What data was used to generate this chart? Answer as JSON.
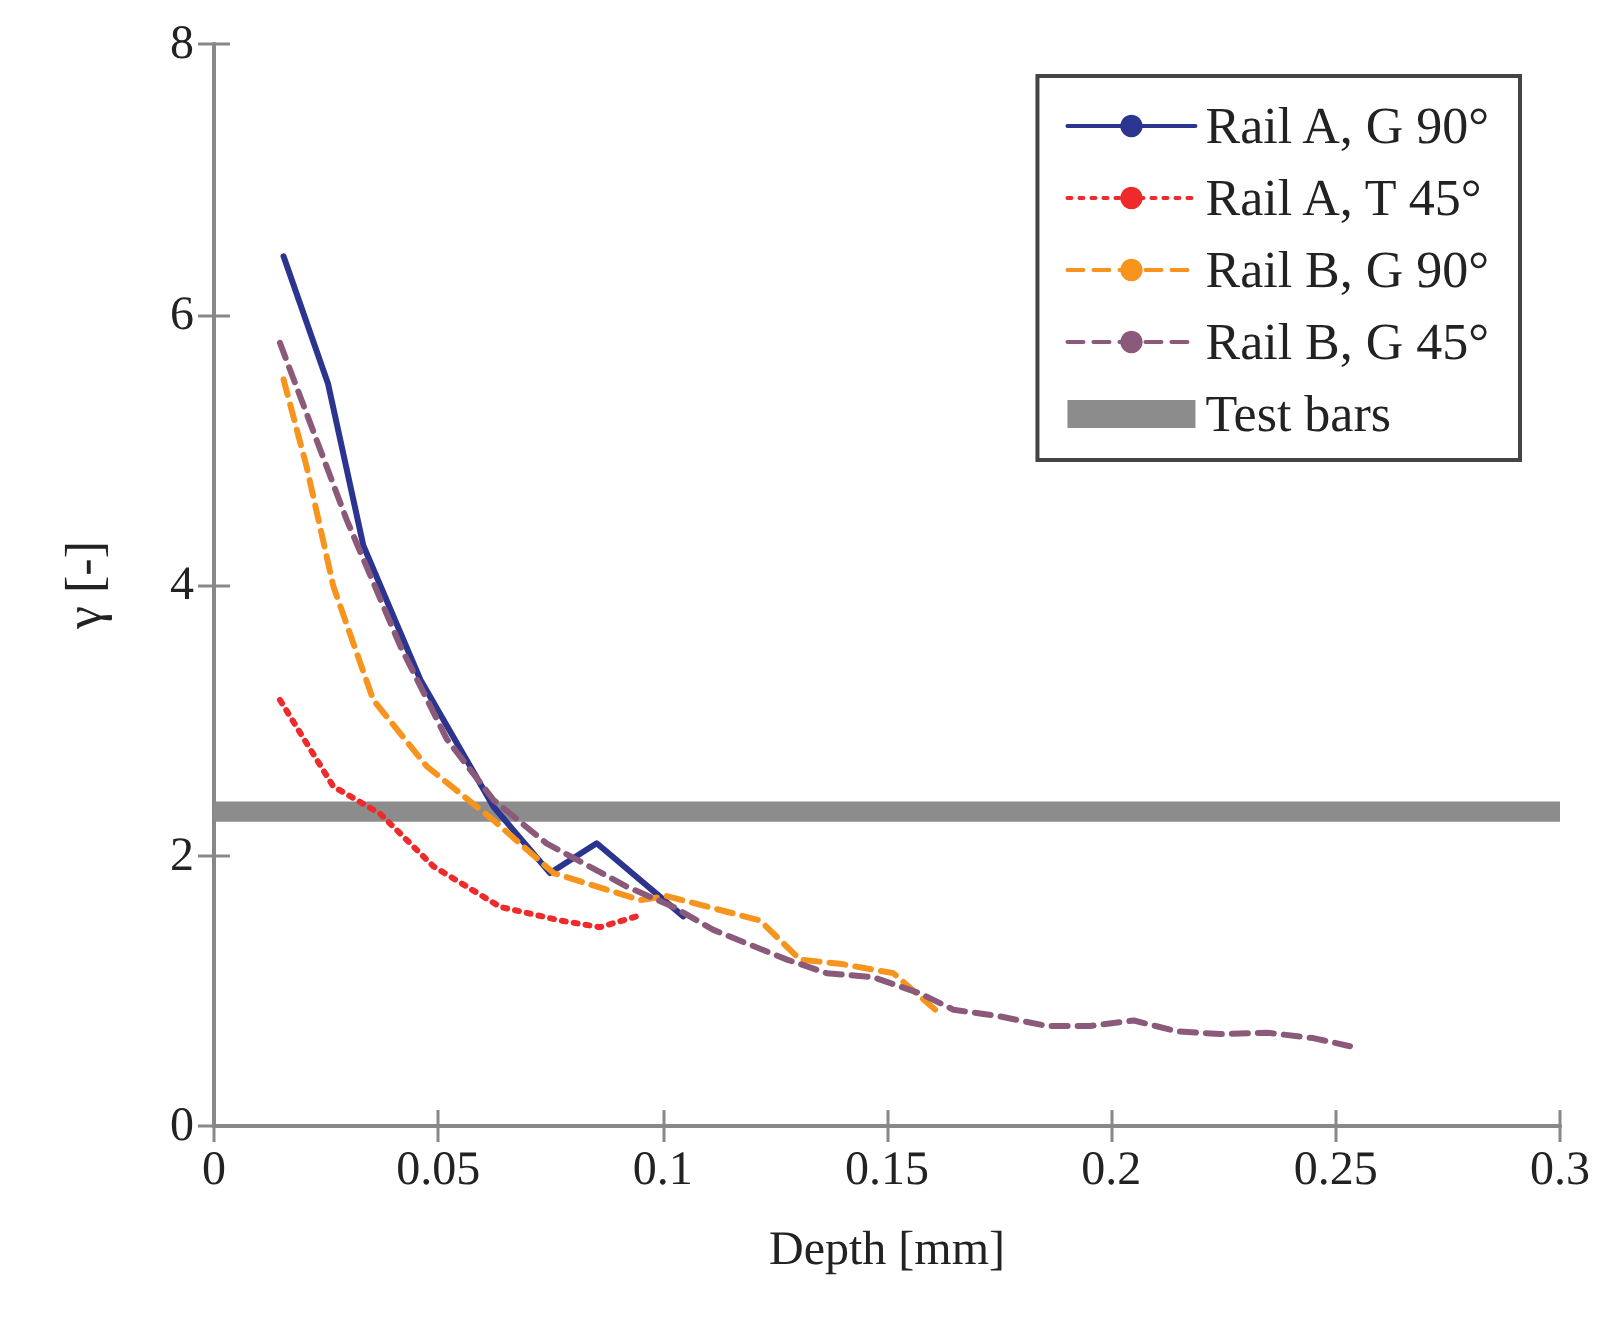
{
  "chart_data": {
    "type": "line",
    "xlabel": "Depth [mm]",
    "ylabel": "γ [-]",
    "xlim": [
      0,
      0.3
    ],
    "xticks": [
      0,
      0.05,
      0.1,
      0.15,
      0.2,
      0.25,
      0.3
    ],
    "ylim": [
      0,
      8
    ],
    "yticks": [
      0,
      2,
      4,
      6,
      8
    ],
    "grid": false,
    "legend": "top right",
    "marker": "none",
    "series": [
      {
        "name": "Rail A, G 90°",
        "color": "#2b3590",
        "line_style": "solid",
        "x": [
          0.0155,
          0.0254,
          0.0333,
          0.046,
          0.0623,
          0.0749,
          0.0853,
          0.1046
        ],
        "values": [
          6.43,
          5.49,
          4.29,
          3.3,
          2.36,
          1.87,
          2.09,
          1.55
        ]
      },
      {
        "name": "Rail A, T 45°",
        "color": "#ee2a2a",
        "line_style": "dotted",
        "x": [
          0.0147,
          0.0266,
          0.037,
          0.0489,
          0.0638,
          0.0771,
          0.086,
          0.0942
        ],
        "values": [
          3.15,
          2.51,
          2.31,
          1.92,
          1.62,
          1.52,
          1.47,
          1.55
        ]
      },
      {
        "name": "Rail B, G 90°",
        "color": "#f7941d",
        "line_style": "dashed",
        "x": [
          0.0155,
          0.0206,
          0.0266,
          0.0355,
          0.0474,
          0.0623,
          0.0757,
          0.095,
          0.1009,
          0.1217,
          0.1306,
          0.1395,
          0.1514,
          0.1618
        ],
        "values": [
          5.52,
          4.88,
          3.99,
          3.15,
          2.66,
          2.26,
          1.87,
          1.67,
          1.7,
          1.52,
          1.23,
          1.2,
          1.13,
          0.83
        ]
      },
      {
        "name": "Rail B, G 45°",
        "color": "#8b5a7a",
        "line_style": "dashed",
        "x": [
          0.0147,
          0.0296,
          0.0415,
          0.0519,
          0.0623,
          0.0741,
          0.092,
          0.1024,
          0.1113,
          0.1277,
          0.1366,
          0.147,
          0.1574,
          0.1648,
          0.1752,
          0.1856,
          0.1953,
          0.205,
          0.2146,
          0.2243,
          0.2347,
          0.245,
          0.2532
        ],
        "values": [
          5.79,
          4.48,
          3.55,
          2.86,
          2.41,
          2.09,
          1.77,
          1.62,
          1.45,
          1.23,
          1.13,
          1.1,
          0.98,
          0.86,
          0.81,
          0.74,
          0.74,
          0.78,
          0.7,
          0.68,
          0.69,
          0.65,
          0.59
        ]
      }
    ],
    "bands": [
      {
        "axis": "y",
        "from": 2.25,
        "to": 2.4,
        "label": "Test bars",
        "color": "#8c8c8c"
      }
    ]
  }
}
